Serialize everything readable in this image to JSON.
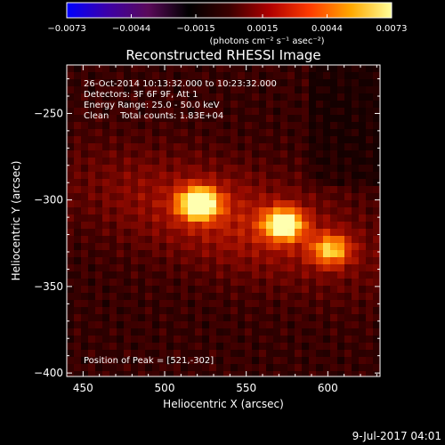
{
  "chart_data": {
    "type": "heatmap",
    "title": "Reconstructed RHESSI Image",
    "xlabel": "Heliocentric X (arcsec)",
    "ylabel": "Heliocentric Y (arcsec)",
    "xlim": [
      440,
      632
    ],
    "ylim": [
      -402,
      -222
    ],
    "x_ticks": [
      {
        "value": 450,
        "label": "450"
      },
      {
        "value": 500,
        "label": "500"
      },
      {
        "value": 550,
        "label": "550"
      },
      {
        "value": 600,
        "label": "600"
      }
    ],
    "y_ticks": [
      {
        "value": -250,
        "label": "−250"
      },
      {
        "value": -300,
        "label": "−300"
      },
      {
        "value": -350,
        "label": "−350"
      },
      {
        "value": -400,
        "label": "−400"
      }
    ],
    "colorbar": {
      "min": -0.0073,
      "max": 0.0073,
      "ticks": [
        {
          "value": -0.0073,
          "label": "−0.0073"
        },
        {
          "value": -0.0044,
          "label": "−0.0044"
        },
        {
          "value": -0.0015,
          "label": "−0.0015"
        },
        {
          "value": 0.0015,
          "label": "0.0015"
        },
        {
          "value": 0.0044,
          "label": "0.0044"
        },
        {
          "value": 0.0073,
          "label": "0.0073"
        }
      ],
      "units_label": "(photons cm⁻² s⁻¹ asec⁻²)",
      "colors": [
        "#0000ff",
        "#3c00a8",
        "#5a0a5a",
        "#000000",
        "#3a0000",
        "#b00000",
        "#ff3c00",
        "#ffa800",
        "#ffff9a"
      ]
    },
    "annotations": [
      "26-Oct-2014 10:13:32.000 to 10:23:32.000",
      "Detectors: 3F 6F 9F, Att 1",
      "Energy Range: 25.0 - 50.0 keV",
      "Clean    Total counts: 1.83E+04"
    ],
    "peak_label": "Position of Peak = [521,-302]",
    "peak": {
      "x": 521,
      "y": -302
    },
    "sources": [
      {
        "x": 521,
        "y": -302,
        "amplitude": 1.0
      },
      {
        "x": 573,
        "y": -314,
        "amplitude": 0.9
      },
      {
        "x": 602,
        "y": -329,
        "amplitude": 0.62
      }
    ],
    "date_stamp": "9-Jul-2017 04:01"
  }
}
